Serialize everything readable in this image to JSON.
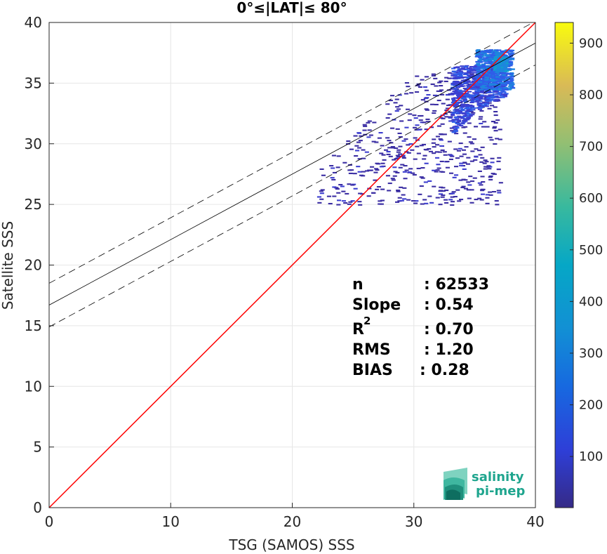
{
  "chart_data": {
    "type": "heatmap",
    "title": "0°≤|LAT|≤ 80°",
    "xlabel": "TSG (SAMOS) SSS",
    "ylabel": "Satellite SSS",
    "xlim": [
      0,
      40
    ],
    "ylim": [
      0,
      40
    ],
    "xticks": [
      "0",
      "10",
      "20",
      "30",
      "40"
    ],
    "yticks": [
      "0",
      "5",
      "10",
      "15",
      "20",
      "25",
      "30",
      "35",
      "40"
    ],
    "grid": true,
    "colorbar": {
      "range": [
        1,
        940
      ],
      "ticks": [
        "100",
        "200",
        "300",
        "400",
        "500",
        "600",
        "700",
        "800",
        "900"
      ],
      "colormap": "parula"
    },
    "lines": [
      {
        "name": "identity",
        "color": "#ff0000",
        "style": "solid",
        "x": [
          0,
          40
        ],
        "y": [
          0,
          40
        ]
      },
      {
        "name": "regression",
        "color": "#000000",
        "style": "solid",
        "x": [
          0,
          40
        ],
        "y": [
          16.7,
          38.3
        ]
      },
      {
        "name": "upper bound",
        "color": "#000000",
        "style": "dashed",
        "x": [
          0,
          40
        ],
        "y": [
          18.5,
          40.1
        ]
      },
      {
        "name": "lower bound",
        "color": "#000000",
        "style": "dashed",
        "x": [
          0,
          40
        ],
        "y": [
          14.9,
          36.5
        ]
      }
    ],
    "density_regions": [
      {
        "x": [
          22,
          37
        ],
        "y": [
          25,
          36
        ],
        "level": 1
      },
      {
        "x": [
          33,
          37.5
        ],
        "y": [
          31,
          36.5
        ],
        "level": 2
      },
      {
        "x": [
          35,
          38
        ],
        "y": [
          34.5,
          37.8
        ],
        "level": 4
      },
      {
        "x": [
          36.5,
          37.5
        ],
        "y": [
          36,
          37.3
        ],
        "level": 8
      }
    ],
    "stats": [
      {
        "label": "n",
        "value": ": 62533"
      },
      {
        "label": "Slope",
        "value": ": 0.54"
      },
      {
        "label": "R",
        "sup": "2",
        "value": ": 0.70"
      },
      {
        "label": "RMS",
        "value": ": 1.20"
      },
      {
        "label": "BIAS",
        "value": ": 0.28"
      }
    ],
    "logo": {
      "line1": "salinity",
      "line2": "pi-mep"
    }
  }
}
